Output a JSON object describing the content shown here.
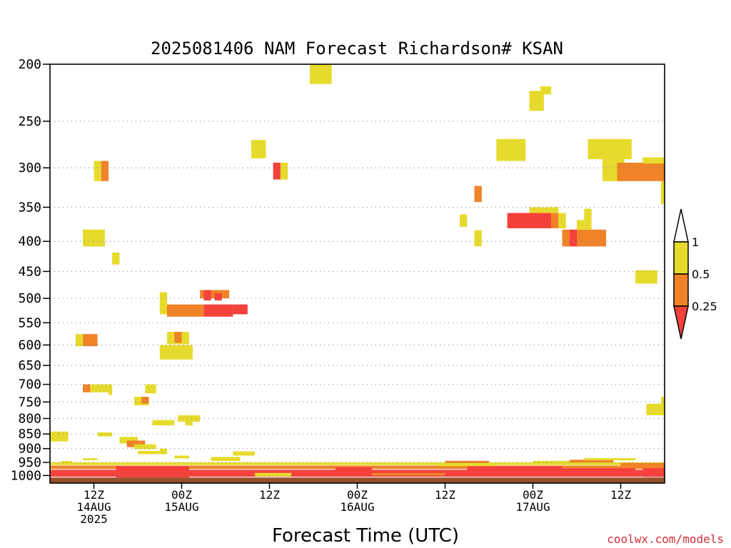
{
  "chart_data": {
    "type": "heatmap",
    "title": "2025081406 NAM Forecast Richardson# KSAN",
    "xlabel": "Forecast Time (UTC)",
    "ylabel": "",
    "credit": "coolwx.com/models",
    "x_unit": "forecast hour from 2025-08-14 06Z",
    "xlim": [
      0,
      84
    ],
    "ylim": [
      1030,
      200
    ],
    "y_scale": "log (pressure, inverted)",
    "y_ticks": [
      200,
      250,
      300,
      350,
      400,
      450,
      500,
      550,
      600,
      650,
      700,
      750,
      800,
      850,
      900,
      950,
      1000
    ],
    "x_ticks": [
      {
        "hour": 6,
        "lines": [
          "12Z",
          "14AUG",
          "2025"
        ]
      },
      {
        "hour": 18,
        "lines": [
          "00Z",
          "15AUG"
        ]
      },
      {
        "hour": 30,
        "lines": [
          "12Z"
        ]
      },
      {
        "hour": 42,
        "lines": [
          "00Z",
          "16AUG"
        ]
      },
      {
        "hour": 54,
        "lines": [
          "12Z"
        ]
      },
      {
        "hour": 66,
        "lines": [
          "00Z",
          "17AUG"
        ]
      },
      {
        "hour": 78,
        "lines": [
          "12Z"
        ]
      }
    ],
    "grid": "dotted horizontal lines at pressure levels",
    "legend": {
      "placement": "right",
      "ranges": [
        {
          "label": "1",
          "color": "#ffffff"
        },
        {
          "label": "0.5",
          "color": "#e6db2d"
        },
        {
          "label": "0.25",
          "color": "#f08228"
        },
        {
          "label": "",
          "color": "#f5413c"
        }
      ]
    },
    "colors": {
      "low": "#f5413c",
      "mid": "#f08228",
      "high": "#e6db2d",
      "ground": "#96502a"
    },
    "cells": [
      {
        "h": [
          35.5,
          38.5
        ],
        "p": [
          200,
          216
        ],
        "c": "high"
      },
      {
        "h": [
          65.5,
          67.5
        ],
        "p": [
          222,
          240
        ],
        "c": "high"
      },
      {
        "h": [
          67,
          68.5
        ],
        "p": [
          218,
          225
        ],
        "c": "high"
      },
      {
        "h": [
          6,
          7
        ],
        "p": [
          292,
          316
        ],
        "c": "high"
      },
      {
        "h": [
          7,
          8
        ],
        "p": [
          292,
          316
        ],
        "c": "mid"
      },
      {
        "h": [
          27.5,
          29.5
        ],
        "p": [
          269,
          289
        ],
        "c": "high"
      },
      {
        "h": [
          30.5,
          31.5
        ],
        "p": [
          294,
          314
        ],
        "c": "low"
      },
      {
        "h": [
          31.5,
          32.5
        ],
        "p": [
          294,
          314
        ],
        "c": "high"
      },
      {
        "h": [
          61,
          65
        ],
        "p": [
          268,
          292
        ],
        "c": "high"
      },
      {
        "h": [
          73.5,
          79.5
        ],
        "p": [
          268,
          290
        ],
        "c": "high"
      },
      {
        "h": [
          75.5,
          78.5
        ],
        "p": [
          290,
          316
        ],
        "c": "high"
      },
      {
        "h": [
          77.5,
          84
        ],
        "p": [
          294,
          316
        ],
        "c": "mid"
      },
      {
        "h": [
          81,
          84
        ],
        "p": [
          288,
          295
        ],
        "c": "high"
      },
      {
        "h": [
          83.5,
          84
        ],
        "p": [
          316,
          346
        ],
        "c": "high"
      },
      {
        "h": [
          58,
          59
        ],
        "p": [
          322,
          343
        ],
        "c": "mid"
      },
      {
        "h": [
          56,
          57
        ],
        "p": [
          360,
          378
        ],
        "c": "high"
      },
      {
        "h": [
          58,
          59
        ],
        "p": [
          383,
          408
        ],
        "c": "high"
      },
      {
        "h": [
          62.5,
          68.5
        ],
        "p": [
          358,
          380
        ],
        "c": "low"
      },
      {
        "h": [
          65.5,
          69.5
        ],
        "p": [
          350,
          358
        ],
        "c": "high"
      },
      {
        "h": [
          68.5,
          69.5
        ],
        "p": [
          358,
          380
        ],
        "c": "mid"
      },
      {
        "h": [
          69.5,
          70.5
        ],
        "p": [
          358,
          380
        ],
        "c": "high"
      },
      {
        "h": [
          70,
          71
        ],
        "p": [
          382,
          408
        ],
        "c": "mid"
      },
      {
        "h": [
          71,
          72
        ],
        "p": [
          382,
          408
        ],
        "c": "low"
      },
      {
        "h": [
          72,
          76
        ],
        "p": [
          382,
          408
        ],
        "c": "mid"
      },
      {
        "h": [
          72,
          73
        ],
        "p": [
          368,
          382
        ],
        "c": "high"
      },
      {
        "h": [
          73,
          74
        ],
        "p": [
          352,
          382
        ],
        "c": "high"
      },
      {
        "h": [
          4.5,
          7.5
        ],
        "p": [
          382,
          408
        ],
        "c": "high"
      },
      {
        "h": [
          8.5,
          9.5
        ],
        "p": [
          418,
          438
        ],
        "c": "high"
      },
      {
        "h": [
          80,
          83
        ],
        "p": [
          448,
          472
        ],
        "c": "high"
      },
      {
        "h": [
          15,
          16
        ],
        "p": [
          488,
          532
        ],
        "c": "high"
      },
      {
        "h": [
          20.5,
          24.5
        ],
        "p": [
          484,
          500
        ],
        "c": "mid"
      },
      {
        "h": [
          21,
          22
        ],
        "p": [
          484,
          504
        ],
        "c": "low"
      },
      {
        "h": [
          22.5,
          23.5
        ],
        "p": [
          490,
          504
        ],
        "c": "low"
      },
      {
        "h": [
          16,
          21
        ],
        "p": [
          512,
          537
        ],
        "c": "mid"
      },
      {
        "h": [
          21,
          25
        ],
        "p": [
          512,
          537
        ],
        "c": "low"
      },
      {
        "h": [
          25,
          27
        ],
        "p": [
          512,
          532
        ],
        "c": "low"
      },
      {
        "h": [
          3.5,
          4.5
        ],
        "p": [
          575,
          603
        ],
        "c": "high"
      },
      {
        "h": [
          4.5,
          6.5
        ],
        "p": [
          575,
          603
        ],
        "c": "mid"
      },
      {
        "h": [
          15,
          19.5
        ],
        "p": [
          600,
          635
        ],
        "c": "high"
      },
      {
        "h": [
          16,
          18
        ],
        "p": [
          570,
          598
        ],
        "c": "high"
      },
      {
        "h": [
          17,
          18
        ],
        "p": [
          570,
          595
        ],
        "c": "mid"
      },
      {
        "h": [
          18,
          19
        ],
        "p": [
          570,
          598
        ],
        "c": "high"
      },
      {
        "h": [
          4.5,
          5.5
        ],
        "p": [
          700,
          722
        ],
        "c": "mid"
      },
      {
        "h": [
          5.5,
          8
        ],
        "p": [
          700,
          722
        ],
        "c": "high"
      },
      {
        "h": [
          8,
          8.5
        ],
        "p": [
          700,
          730
        ],
        "c": "high"
      },
      {
        "h": [
          11.5,
          13.5
        ],
        "p": [
          735,
          760
        ],
        "c": "high"
      },
      {
        "h": [
          12.5,
          13.5
        ],
        "p": [
          735,
          755
        ],
        "c": "mid"
      },
      {
        "h": [
          13,
          14.5
        ],
        "p": [
          700,
          725
        ],
        "c": "high"
      },
      {
        "h": [
          14,
          17
        ],
        "p": [
          805,
          822
        ],
        "c": "high"
      },
      {
        "h": [
          17.5,
          20.5
        ],
        "p": [
          790,
          810
        ],
        "c": "high"
      },
      {
        "h": [
          18.5,
          19.5
        ],
        "p": [
          805,
          822
        ],
        "c": "high"
      },
      {
        "h": [
          81.5,
          84
        ],
        "p": [
          755,
          790
        ],
        "c": "high"
      },
      {
        "h": [
          83.5,
          84
        ],
        "p": [
          735,
          757
        ],
        "c": "high"
      },
      {
        "h": [
          0,
          2.5
        ],
        "p": [
          842,
          875
        ],
        "c": "high"
      },
      {
        "h": [
          6.5,
          8.5
        ],
        "p": [
          845,
          858
        ],
        "c": "high"
      },
      {
        "h": [
          9.5,
          12
        ],
        "p": [
          860,
          882
        ],
        "c": "high"
      },
      {
        "h": [
          10.5,
          13
        ],
        "p": [
          872,
          895
        ],
        "c": "mid"
      },
      {
        "h": [
          11.5,
          14.5
        ],
        "p": [
          885,
          902
        ],
        "c": "high"
      },
      {
        "h": [
          12,
          15
        ],
        "p": [
          908,
          920
        ],
        "c": "high"
      },
      {
        "h": [
          15,
          16
        ],
        "p": [
          900,
          920
        ],
        "c": "high"
      },
      {
        "h": [
          25,
          28
        ],
        "p": [
          910,
          925
        ],
        "c": "high"
      },
      {
        "h": [
          22,
          26
        ],
        "p": [
          930,
          945
        ],
        "c": "high"
      },
      {
        "h": [
          1.5,
          3
        ],
        "p": [
          945,
          952
        ],
        "c": "high"
      },
      {
        "h": [
          4.5,
          6.5
        ],
        "p": [
          935,
          942
        ],
        "c": "high"
      },
      {
        "h": [
          17,
          19
        ],
        "p": [
          925,
          935
        ],
        "c": "high"
      },
      {
        "h": [
          0,
          84
        ],
        "p": [
          950,
          960
        ],
        "c": "high"
      },
      {
        "h": [
          0,
          84
        ],
        "p": [
          962,
          975
        ],
        "c": "mid"
      },
      {
        "h": [
          54,
          60
        ],
        "p": [
          944,
          952
        ],
        "c": "mid"
      },
      {
        "h": [
          53,
          61
        ],
        "p": [
          956,
          964
        ],
        "c": "high"
      },
      {
        "h": [
          66,
          71
        ],
        "p": [
          944,
          954
        ],
        "c": "high"
      },
      {
        "h": [
          71,
          77
        ],
        "p": [
          940,
          950
        ],
        "c": "mid"
      },
      {
        "h": [
          73,
          80
        ],
        "p": [
          934,
          942
        ],
        "c": "high"
      },
      {
        "h": [
          78,
          84
        ],
        "p": [
          952,
          962
        ],
        "c": "mid"
      },
      {
        "h": [
          0,
          84
        ],
        "p": [
          978,
          1005
        ],
        "c": "low"
      },
      {
        "h": [
          9,
          19
        ],
        "p": [
          964,
          1008
        ],
        "c": "low"
      },
      {
        "h": [
          39,
          44
        ],
        "p": [
          968,
          1004
        ],
        "c": "low"
      },
      {
        "h": [
          57,
          70
        ],
        "p": [
          964,
          1004
        ],
        "c": "low"
      },
      {
        "h": [
          68,
          80
        ],
        "p": [
          972,
          1004
        ],
        "c": "low"
      },
      {
        "h": [
          81,
          84
        ],
        "p": [
          972,
          1006
        ],
        "c": "low"
      },
      {
        "h": [
          28,
          33
        ],
        "p": [
          990,
          1004
        ],
        "c": "high"
      },
      {
        "h": [
          44,
          54
        ],
        "p": [
          990,
          1000
        ],
        "c": "mid"
      },
      {
        "h": [
          0,
          84
        ],
        "p": [
          1008,
          1030
        ],
        "c": "ground"
      }
    ]
  }
}
